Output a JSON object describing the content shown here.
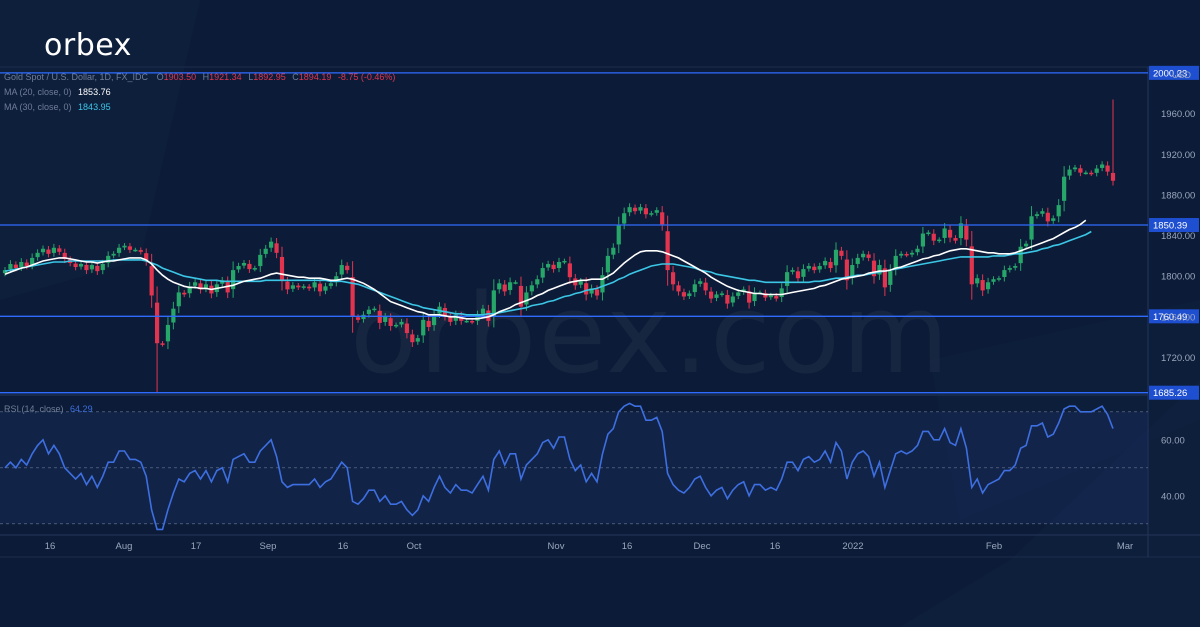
{
  "brand": {
    "logo_text": "orbex",
    "watermark_text": "orbex.com"
  },
  "header": {
    "symbol": "Gold Spot / U.S. Dollar, 1D, FX_IDC",
    "ohlc": {
      "o_label": "O",
      "o": "1903.50",
      "h_label": "H",
      "h": "1921.34",
      "l_label": "L",
      "l": "1892.95",
      "c_label": "C",
      "c": "1894.19",
      "change": "-8.75 (-0.46%)"
    }
  },
  "indicators": {
    "ma20": {
      "label": "MA (20, close, 0)",
      "value": "1853.76",
      "color": "#ffffff"
    },
    "ma30": {
      "label": "MA (30, close, 0)",
      "value": "1843.95",
      "color": "#3cc6e6"
    },
    "rsi": {
      "label": "RSI (14, close)",
      "value": "64.29",
      "color": "#3d6fe0"
    }
  },
  "colors": {
    "up": "#26a669",
    "down": "#e2344f",
    "level_line": "#2f6bff",
    "background": "#0c1c38"
  },
  "chart_data": [
    {
      "type": "candlestick",
      "title": "Gold Spot / U.S. Dollar, 1D, FX_IDC",
      "x_ticks": [
        "16",
        "Aug",
        "17",
        "Sep",
        "16",
        "Oct",
        "Nov",
        "16",
        "Dec",
        "16",
        "2022",
        "Feb",
        "Mar"
      ],
      "y_ticks": [
        "1960.00",
        "1920.00",
        "1880.00",
        "1840.00",
        "1800.00",
        "1760.00",
        "1720.00"
      ],
      "y_unit_label": "USD",
      "ylim": [
        1683,
        2006
      ],
      "horizontal_levels": [
        {
          "value": 2000.23,
          "label": "2000.23"
        },
        {
          "value": 1850.39,
          "label": "1850.39"
        },
        {
          "value": 1760.49,
          "label": "1760.49"
        },
        {
          "value": 1685.26,
          "label": "1685.26"
        }
      ],
      "close": [
        1806,
        1812,
        1808,
        1814,
        1810,
        1818,
        1823,
        1827,
        1822,
        1828,
        1824,
        1817,
        1813,
        1809,
        1812,
        1806,
        1811,
        1805,
        1812,
        1820,
        1822,
        1828,
        1830,
        1826,
        1826,
        1824,
        1815,
        1781,
        1734,
        1733,
        1752,
        1768,
        1784,
        1782,
        1790,
        1794,
        1787,
        1792,
        1783,
        1792,
        1796,
        1784,
        1806,
        1810,
        1813,
        1807,
        1808,
        1821,
        1827,
        1834,
        1823,
        1796,
        1787,
        1791,
        1789,
        1790,
        1788,
        1794,
        1785,
        1790,
        1793,
        1800,
        1811,
        1806,
        1760,
        1757,
        1762,
        1767,
        1768,
        1754,
        1760,
        1751,
        1752,
        1755,
        1744,
        1735,
        1739,
        1757,
        1750,
        1762,
        1770,
        1761,
        1755,
        1762,
        1756,
        1756,
        1755,
        1762,
        1768,
        1756,
        1786,
        1793,
        1785,
        1794,
        1794,
        1770,
        1784,
        1791,
        1797,
        1808,
        1812,
        1807,
        1814,
        1815,
        1799,
        1791,
        1795,
        1782,
        1788,
        1781,
        1801,
        1820,
        1828,
        1850,
        1862,
        1868,
        1864,
        1868,
        1861,
        1862,
        1865,
        1851,
        1806,
        1792,
        1785,
        1780,
        1783,
        1792,
        1795,
        1786,
        1778,
        1782,
        1783,
        1773,
        1780,
        1784,
        1787,
        1774,
        1784,
        1784,
        1779,
        1781,
        1778,
        1788,
        1804,
        1806,
        1798,
        1807,
        1810,
        1806,
        1810,
        1815,
        1808,
        1826,
        1820,
        1796,
        1811,
        1818,
        1822,
        1818,
        1800,
        1811,
        1789,
        1805,
        1820,
        1822,
        1821,
        1823,
        1827,
        1842,
        1843,
        1835,
        1836,
        1847,
        1838,
        1835,
        1852,
        1836,
        1792,
        1798,
        1786,
        1794,
        1797,
        1798,
        1806,
        1808,
        1810,
        1829,
        1832,
        1859,
        1861,
        1864,
        1854,
        1857,
        1870,
        1898,
        1905,
        1907,
        1902,
        1902,
        1901,
        1906,
        1910,
        1903,
        1894
      ],
      "ma20": [
        1802,
        1804,
        1806,
        1808,
        1809,
        1811,
        1813,
        1815,
        1816,
        1817,
        1818,
        1818,
        1817,
        1816,
        1815,
        1814,
        1814,
        1813,
        1814,
        1815,
        1815,
        1816,
        1817,
        1818,
        1818,
        1818,
        1816,
        1812,
        1806,
        1801,
        1797,
        1794,
        1792,
        1790,
        1789,
        1789,
        1788,
        1788,
        1787,
        1788,
        1789,
        1790,
        1791,
        1793,
        1795,
        1796,
        1797,
        1798,
        1800,
        1802,
        1803,
        1802,
        1801,
        1800,
        1799,
        1799,
        1798,
        1798,
        1798,
        1797,
        1796,
        1796,
        1797,
        1798,
        1797,
        1795,
        1793,
        1790,
        1787,
        1783,
        1779,
        1775,
        1773,
        1771,
        1769,
        1767,
        1765,
        1764,
        1762,
        1762,
        1762,
        1761,
        1760,
        1760,
        1759,
        1758,
        1758,
        1758,
        1759,
        1760,
        1762,
        1765,
        1767,
        1769,
        1772,
        1774,
        1776,
        1778,
        1781,
        1783,
        1786,
        1788,
        1790,
        1792,
        1794,
        1795,
        1796,
        1796,
        1797,
        1797,
        1797,
        1800,
        1803,
        1808,
        1813,
        1817,
        1821,
        1824,
        1825,
        1825,
        1825,
        1824,
        1822,
        1820,
        1818,
        1815,
        1812,
        1809,
        1806,
        1803,
        1799,
        1796,
        1793,
        1790,
        1788,
        1786,
        1785,
        1784,
        1783,
        1783,
        1782,
        1782,
        1782,
        1782,
        1783,
        1784,
        1785,
        1786,
        1787,
        1788,
        1790,
        1791,
        1793,
        1795,
        1797,
        1798,
        1799,
        1800,
        1801,
        1803,
        1804,
        1805,
        1805,
        1806,
        1808,
        1809,
        1811,
        1813,
        1815,
        1817,
        1818,
        1820,
        1821,
        1823,
        1825,
        1826,
        1827,
        1827,
        1826,
        1825,
        1824,
        1823,
        1823,
        1822,
        1822,
        1822,
        1823,
        1825,
        1827,
        1829,
        1831,
        1833,
        1835,
        1837,
        1840,
        1843,
        1846,
        1848,
        1851,
        1855
      ],
      "ma30": [
        1805,
        1806,
        1807,
        1808,
        1809,
        1810,
        1811,
        1812,
        1813,
        1814,
        1814,
        1814,
        1815,
        1815,
        1815,
        1815,
        1815,
        1815,
        1815,
        1815,
        1816,
        1816,
        1816,
        1816,
        1816,
        1816,
        1815,
        1813,
        1811,
        1808,
        1806,
        1804,
        1802,
        1800,
        1799,
        1798,
        1797,
        1796,
        1796,
        1796,
        1795,
        1795,
        1795,
        1795,
        1795,
        1795,
        1795,
        1795,
        1796,
        1796,
        1796,
        1796,
        1796,
        1796,
        1796,
        1796,
        1796,
        1796,
        1796,
        1796,
        1795,
        1795,
        1795,
        1794,
        1793,
        1792,
        1790,
        1788,
        1786,
        1784,
        1782,
        1780,
        1778,
        1776,
        1774,
        1772,
        1771,
        1769,
        1768,
        1767,
        1766,
        1765,
        1764,
        1763,
        1763,
        1762,
        1762,
        1762,
        1762,
        1763,
        1763,
        1764,
        1765,
        1766,
        1767,
        1768,
        1769,
        1771,
        1772,
        1773,
        1775,
        1776,
        1778,
        1780,
        1781,
        1783,
        1784,
        1786,
        1787,
        1788,
        1790,
        1792,
        1794,
        1797,
        1799,
        1802,
        1804,
        1806,
        1808,
        1810,
        1811,
        1812,
        1812,
        1812,
        1811,
        1810,
        1809,
        1808,
        1806,
        1805,
        1804,
        1802,
        1801,
        1800,
        1799,
        1798,
        1797,
        1796,
        1796,
        1795,
        1794,
        1794,
        1794,
        1794,
        1794,
        1794,
        1794,
        1794,
        1794,
        1795,
        1795,
        1796,
        1797,
        1798,
        1798,
        1799,
        1800,
        1801,
        1801,
        1802,
        1803,
        1804,
        1805,
        1806,
        1807,
        1808,
        1809,
        1810,
        1811,
        1812,
        1813,
        1814,
        1815,
        1816,
        1817,
        1818,
        1819,
        1819,
        1819,
        1819,
        1819,
        1819,
        1820,
        1820,
        1820,
        1821,
        1822,
        1822,
        1823,
        1824,
        1825,
        1827,
        1828,
        1830,
        1831,
        1833,
        1835,
        1837,
        1839,
        1841,
        1844
      ]
    },
    {
      "type": "line",
      "title": "RSI (14, close)",
      "y_ticks": [
        "60.00",
        "40.00"
      ],
      "ylim": [
        26,
        76
      ],
      "bands": [
        70,
        50,
        30
      ],
      "values": [
        50,
        52,
        50,
        53,
        51,
        55,
        58,
        60,
        55,
        58,
        55,
        50,
        48,
        46,
        48,
        44,
        47,
        43,
        47,
        52,
        52,
        56,
        56,
        53,
        53,
        52,
        47,
        35,
        28,
        28,
        35,
        41,
        46,
        45,
        48,
        49,
        46,
        49,
        45,
        49,
        50,
        45,
        53,
        54,
        55,
        52,
        52,
        56,
        58,
        60,
        54,
        45,
        43,
        44,
        44,
        44,
        44,
        46,
        43,
        45,
        46,
        49,
        52,
        50,
        38,
        37,
        39,
        42,
        42,
        38,
        40,
        37,
        37,
        38,
        35,
        33,
        35,
        40,
        38,
        43,
        47,
        43,
        41,
        44,
        42,
        42,
        41,
        44,
        47,
        42,
        53,
        56,
        51,
        55,
        55,
        46,
        51,
        53,
        55,
        59,
        60,
        57,
        61,
        61,
        53,
        49,
        51,
        45,
        48,
        45,
        55,
        62,
        64,
        70,
        72,
        73,
        72,
        72,
        67,
        67,
        68,
        63,
        48,
        44,
        42,
        41,
        43,
        46,
        47,
        43,
        40,
        42,
        43,
        39,
        42,
        44,
        45,
        40,
        44,
        44,
        42,
        43,
        42,
        46,
        52,
        52,
        49,
        53,
        54,
        52,
        53,
        56,
        52,
        59,
        56,
        46,
        52,
        55,
        56,
        54,
        47,
        52,
        43,
        49,
        55,
        56,
        55,
        56,
        58,
        63,
        63,
        60,
        60,
        64,
        59,
        58,
        64,
        57,
        43,
        46,
        41,
        44,
        45,
        46,
        49,
        49,
        51,
        57,
        58,
        65,
        65,
        66,
        61,
        62,
        66,
        71,
        72,
        72,
        70,
        70,
        70,
        71,
        72,
        69,
        64
      ]
    }
  ]
}
